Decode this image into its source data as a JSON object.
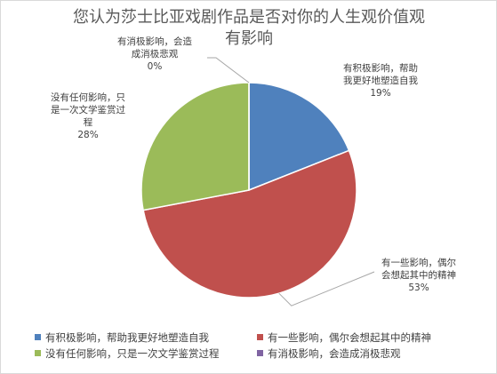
{
  "chart_data": {
    "type": "pie",
    "title_lines": [
      "您认为莎士比亚戏剧作品是否对你的人生观价值观",
      "有影响"
    ],
    "slices": [
      {
        "name": "有积极影响，帮助我更好地塑造自我",
        "value": 19,
        "value_label": "19%",
        "color": "#4F81BD",
        "label_lines": [
          "有积极影响，帮助",
          "我更好地塑造自我"
        ]
      },
      {
        "name": "有一些影响，偶尔会想起其中的精神",
        "value": 53,
        "value_label": "53%",
        "color": "#C0504D",
        "label_lines": [
          "有一些影响，偶尔",
          "会想起其中的精神"
        ]
      },
      {
        "name": "没有任何影响，只是一次文学鉴赏过程",
        "value": 28,
        "value_label": "28%",
        "color": "#9BBB59",
        "label_lines": [
          "没有任何影响，只",
          "是一次文学鉴赏过",
          "程"
        ]
      },
      {
        "name": "有消极影响，会造成消极悲观",
        "value": 0,
        "value_label": "0%",
        "color": "#8064A2",
        "label_lines": [
          "有消极影响，会造",
          "成消极悲观"
        ]
      }
    ],
    "legend_position": "bottom"
  }
}
